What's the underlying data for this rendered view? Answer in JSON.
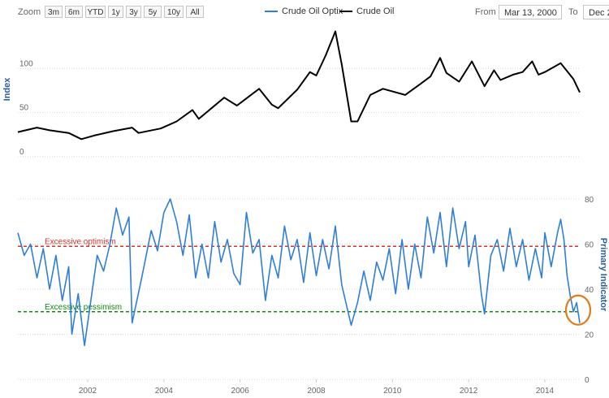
{
  "toolbar": {
    "zoom_label": "Zoom",
    "zoom_buttons": [
      "3m",
      "6m",
      "YTD",
      "1y",
      "3y",
      "5y",
      "10y",
      "All"
    ],
    "legend": [
      {
        "name": "Crude Oil Optix",
        "color": "#2f7ed8"
      },
      {
        "name": "Crude Oil",
        "color": "#000000"
      }
    ],
    "from_label": "From",
    "from_value": "Mar 13, 2000",
    "to_label": "To",
    "to_value": "Dec 2"
  },
  "chart_data": [
    {
      "type": "line",
      "panel": "top",
      "ylabel": "Index",
      "x_range": [
        "2000-03",
        "2014-12"
      ],
      "x_ticks": [],
      "y_ticks": [
        0,
        50,
        100
      ],
      "ylim": [
        0,
        150
      ],
      "grid": true,
      "series": [
        {
          "name": "Crude Oil",
          "color": "#000000",
          "points": [
            [
              "2000-03",
              28
            ],
            [
              "2000-09",
              33
            ],
            [
              "2001-01",
              30
            ],
            [
              "2001-07",
              27
            ],
            [
              "2001-11",
              20
            ],
            [
              "2002-03",
              24
            ],
            [
              "2002-09",
              29
            ],
            [
              "2003-03",
              33
            ],
            [
              "2003-05",
              27
            ],
            [
              "2003-12",
              32
            ],
            [
              "2004-05",
              40
            ],
            [
              "2004-10",
              53
            ],
            [
              "2004-12",
              43
            ],
            [
              "2005-04",
              55
            ],
            [
              "2005-08",
              67
            ],
            [
              "2005-12",
              58
            ],
            [
              "2006-07",
              77
            ],
            [
              "2006-11",
              59
            ],
            [
              "2007-01",
              55
            ],
            [
              "2007-07",
              76
            ],
            [
              "2007-11",
              96
            ],
            [
              "2008-01",
              92
            ],
            [
              "2008-04",
              115
            ],
            [
              "2008-07",
              142
            ],
            [
              "2008-09",
              105
            ],
            [
              "2008-12",
              40
            ],
            [
              "2009-02",
              40
            ],
            [
              "2009-06",
              70
            ],
            [
              "2009-10",
              77
            ],
            [
              "2010-05",
              70
            ],
            [
              "2010-10",
              83
            ],
            [
              "2011-01",
              91
            ],
            [
              "2011-04",
              112
            ],
            [
              "2011-06",
              95
            ],
            [
              "2011-10",
              85
            ],
            [
              "2012-02",
              108
            ],
            [
              "2012-06",
              80
            ],
            [
              "2012-09",
              98
            ],
            [
              "2012-11",
              87
            ],
            [
              "2013-03",
              93
            ],
            [
              "2013-06",
              96
            ],
            [
              "2013-09",
              108
            ],
            [
              "2013-11",
              93
            ],
            [
              "2014-01",
              96
            ],
            [
              "2014-06",
              106
            ],
            [
              "2014-08",
              97
            ],
            [
              "2014-10",
              88
            ],
            [
              "2014-12",
              73
            ]
          ]
        }
      ]
    },
    {
      "type": "line",
      "panel": "bottom",
      "ylabel": "Primary Indicator",
      "x_range": [
        "2000-03",
        "2014-12"
      ],
      "x_ticks": [
        "2002",
        "2004",
        "2006",
        "2008",
        "2010",
        "2012",
        "2014"
      ],
      "y_ticks": [
        0,
        20,
        40,
        60,
        80
      ],
      "ylim": [
        0,
        80
      ],
      "grid": true,
      "series": [
        {
          "name": "Crude Oil Optix",
          "color": "#2f7ed8",
          "points": [
            [
              "2000-03",
              65
            ],
            [
              "2000-05",
              55
            ],
            [
              "2000-07",
              60
            ],
            [
              "2000-09",
              45
            ],
            [
              "2000-11",
              58
            ],
            [
              "2001-01",
              40
            ],
            [
              "2001-03",
              55
            ],
            [
              "2001-05",
              35
            ],
            [
              "2001-07",
              50
            ],
            [
              "2001-08",
              20
            ],
            [
              "2001-10",
              38
            ],
            [
              "2001-12",
              15
            ],
            [
              "2002-02",
              35
            ],
            [
              "2002-04",
              55
            ],
            [
              "2002-06",
              48
            ],
            [
              "2002-08",
              60
            ],
            [
              "2002-10",
              76
            ],
            [
              "2002-12",
              64
            ],
            [
              "2003-02",
              72
            ],
            [
              "2003-03",
              25
            ],
            [
              "2003-06",
              45
            ],
            [
              "2003-09",
              66
            ],
            [
              "2003-11",
              57
            ],
            [
              "2004-01",
              74
            ],
            [
              "2004-03",
              80
            ],
            [
              "2004-05",
              70
            ],
            [
              "2004-07",
              55
            ],
            [
              "2004-09",
              73
            ],
            [
              "2004-11",
              45
            ],
            [
              "2005-01",
              60
            ],
            [
              "2005-03",
              45
            ],
            [
              "2005-05",
              70
            ],
            [
              "2005-07",
              52
            ],
            [
              "2005-09",
              62
            ],
            [
              "2005-11",
              47
            ],
            [
              "2006-01",
              42
            ],
            [
              "2006-03",
              74
            ],
            [
              "2006-05",
              56
            ],
            [
              "2006-07",
              62
            ],
            [
              "2006-09",
              35
            ],
            [
              "2006-11",
              55
            ],
            [
              "2007-01",
              45
            ],
            [
              "2007-03",
              68
            ],
            [
              "2007-05",
              53
            ],
            [
              "2007-07",
              62
            ],
            [
              "2007-09",
              43
            ],
            [
              "2007-11",
              65
            ],
            [
              "2008-01",
              46
            ],
            [
              "2008-03",
              62
            ],
            [
              "2008-05",
              49
            ],
            [
              "2008-07",
              68
            ],
            [
              "2008-09",
              42
            ],
            [
              "2008-11",
              30
            ],
            [
              "2008-12",
              24
            ],
            [
              "2009-02",
              34
            ],
            [
              "2009-04",
              48
            ],
            [
              "2009-06",
              35
            ],
            [
              "2009-08",
              52
            ],
            [
              "2009-10",
              44
            ],
            [
              "2009-12",
              58
            ],
            [
              "2010-02",
              38
            ],
            [
              "2010-04",
              62
            ],
            [
              "2010-06",
              40
            ],
            [
              "2010-08",
              60
            ],
            [
              "2010-10",
              45
            ],
            [
              "2010-12",
              72
            ],
            [
              "2011-02",
              56
            ],
            [
              "2011-04",
              74
            ],
            [
              "2011-06",
              50
            ],
            [
              "2011-08",
              76
            ],
            [
              "2011-10",
              58
            ],
            [
              "2011-12",
              70
            ],
            [
              "2012-01",
              50
            ],
            [
              "2012-03",
              64
            ],
            [
              "2012-05",
              38
            ],
            [
              "2012-06",
              29
            ],
            [
              "2012-08",
              55
            ],
            [
              "2012-10",
              62
            ],
            [
              "2012-12",
              48
            ],
            [
              "2013-02",
              67
            ],
            [
              "2013-04",
              50
            ],
            [
              "2013-06",
              62
            ],
            [
              "2013-08",
              44
            ],
            [
              "2013-10",
              58
            ],
            [
              "2013-12",
              45
            ],
            [
              "2014-01",
              65
            ],
            [
              "2014-03",
              50
            ],
            [
              "2014-05",
              65
            ],
            [
              "2014-06",
              71
            ],
            [
              "2014-07",
              62
            ],
            [
              "2014-08",
              46
            ],
            [
              "2014-09",
              37
            ],
            [
              "2014-10",
              30
            ],
            [
              "2014-11",
              34
            ],
            [
              "2014-12",
              25
            ]
          ]
        }
      ],
      "reference_lines": [
        {
          "label": "Excessive optimism",
          "value": 59,
          "color": "#d9302c"
        },
        {
          "label": "Excessive pessimism",
          "value": 30,
          "color": "#118811"
        }
      ],
      "annotation": {
        "type": "circle",
        "at": [
          "2014-12",
          30
        ],
        "color": "#e07b1a"
      }
    }
  ]
}
